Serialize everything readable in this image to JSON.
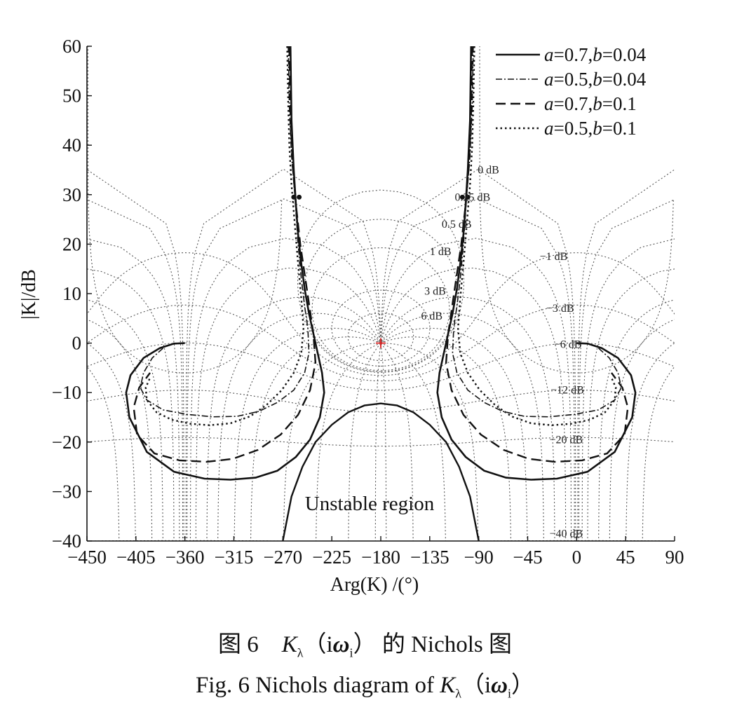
{
  "chart_data": {
    "type": "line",
    "title": "",
    "xlabel": "Arg(K) /(°)",
    "ylabel": "|K|/dB",
    "xlim": [
      -450,
      90
    ],
    "ylim": [
      -40,
      60
    ],
    "xticks": [
      -450,
      -405,
      -360,
      -315,
      -270,
      -225,
      -180,
      -135,
      -90,
      -45,
      0,
      45,
      90
    ],
    "yticks": [
      -40,
      -30,
      -20,
      -10,
      0,
      10,
      20,
      30,
      40,
      50,
      60
    ],
    "grid": "Nichols chart grid (dotted M- and N-circles)",
    "legend_position": "top-right",
    "critical_point": [
      -180,
      0
    ],
    "m_circle_labels": [
      "0 dB",
      "0.25 dB",
      "0.5 dB",
      "1 dB",
      "3 dB",
      "6 dB",
      "-1 dB",
      "-3 dB",
      "-6 dB",
      "-12 dB",
      "-20 dB",
      "-40 dB"
    ],
    "region_label": "Unstable region",
    "unstable_region": {
      "x": [
        -270,
        -262,
        -252,
        -240,
        -225,
        -210,
        -195,
        -180,
        -165,
        -150,
        -135,
        -120,
        -108,
        -98,
        -90
      ],
      "y": [
        -40,
        -31,
        -25,
        -20,
        -16.5,
        -14,
        -12.6,
        -12.2,
        -12.6,
        -14,
        -16.5,
        -20,
        -25,
        -31,
        -40
      ]
    },
    "series": [
      {
        "name": "a=0.7,b=0.04",
        "style": "solid",
        "x": [
          -263,
          -262,
          -260,
          -258,
          -256,
          -253,
          -250,
          -246,
          -242,
          -238,
          -234,
          -232,
          -236,
          -245,
          -258,
          -275,
          -295,
          -318,
          -342,
          -370,
          -395,
          -411,
          -414,
          -410,
          -398,
          -383,
          -370,
          -360
        ],
        "y": [
          60,
          45,
          35,
          28,
          22,
          16,
          11,
          6,
          2,
          -2,
          -6,
          -10,
          -15,
          -19.5,
          -23,
          -25.8,
          -27.2,
          -27.6,
          -27.4,
          -26,
          -22,
          -15,
          -10,
          -6.5,
          -3,
          -1,
          -0.1,
          0
        ]
      },
      {
        "name": "a=0.5,b=0.04",
        "style": "dashdot",
        "x": [
          -265,
          -264,
          -262,
          -259,
          -256,
          -253,
          -250,
          -247,
          -246,
          -250,
          -260,
          -275,
          -292,
          -312,
          -335,
          -358,
          -380,
          -395,
          -401,
          -398,
          -390,
          -380
        ],
        "y": [
          60,
          48,
          38,
          30,
          20,
          13,
          7.5,
          3,
          -2,
          -6,
          -9.5,
          -12,
          -13.8,
          -14.8,
          -14.9,
          -14.4,
          -13.5,
          -11.5,
          -9,
          -6,
          -3,
          -1
        ]
      },
      {
        "name": "a=0.7,b=0.1",
        "style": "dashed",
        "x": [
          -264,
          -263,
          -261,
          -258,
          -254,
          -250,
          -246,
          -242,
          -240,
          -245,
          -256,
          -272,
          -293,
          -316,
          -340,
          -365,
          -388,
          -404,
          -407,
          -402,
          -392
        ],
        "y": [
          60,
          46,
          36,
          28,
          20,
          14,
          8,
          2,
          -4,
          -9.5,
          -14.5,
          -18.5,
          -21.6,
          -23.4,
          -24,
          -23.7,
          -22.3,
          -18.5,
          -13,
          -9,
          -6
        ]
      },
      {
        "name": "a=0.5,b=0.1",
        "style": "dotted",
        "x": [
          -266,
          -265,
          -264,
          -262,
          -259,
          -256,
          -253,
          -251,
          -253,
          -260,
          -271,
          -285,
          -300,
          -318,
          -337,
          -355,
          -372,
          -386,
          -395,
          -396,
          -392
        ],
        "y": [
          60,
          48,
          40,
          32,
          24,
          16,
          9,
          3,
          -2,
          -6,
          -9.5,
          -12.5,
          -14.8,
          -16.2,
          -16.6,
          -16.3,
          -15.5,
          -14,
          -11.5,
          -9,
          -7
        ]
      }
    ]
  },
  "caption": {
    "cn_prefix": "图 6",
    "cn_K": "K",
    "cn_sub": "λ",
    "cn_arg_open": "（i",
    "cn_omega": "ω",
    "cn_omega_sub": "i",
    "cn_arg_close": "）",
    "cn_suffix": "的 Nichols 图",
    "en_prefix": "Fig. 6   Nichols diagram of",
    "en_K": "K",
    "en_sub": "λ",
    "en_arg_open": "（i",
    "en_omega": "ω",
    "en_omega_sub": "i",
    "en_arg_close": "）"
  }
}
